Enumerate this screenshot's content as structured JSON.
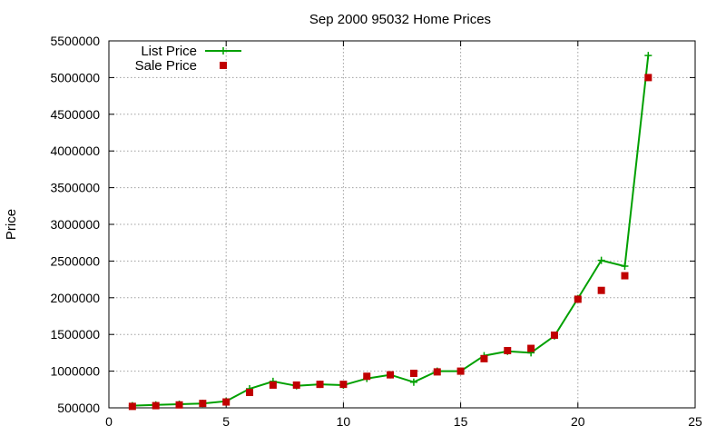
{
  "chart_data": {
    "type": "line",
    "title": "Sep 2000 95032 Home Prices",
    "xlabel": "",
    "ylabel": "Price",
    "xlim": [
      0,
      25
    ],
    "ylim": [
      500000,
      5500000
    ],
    "grid": true,
    "legend_position": "top-left",
    "x_ticks": [
      "0",
      "5",
      "10",
      "15",
      "20",
      "25"
    ],
    "y_ticks": [
      "500000",
      "1000000",
      "1500000",
      "2000000",
      "2500000",
      "3000000",
      "3500000",
      "4000000",
      "4500000",
      "5000000",
      "5500000"
    ],
    "x": [
      1,
      2,
      3,
      4,
      5,
      6,
      7,
      8,
      9,
      10,
      11,
      12,
      13,
      14,
      15,
      16,
      17,
      18,
      19,
      20,
      21,
      22,
      23
    ],
    "series": [
      {
        "name": "List Price",
        "style": "line-with-plus-markers",
        "color": "#00a000",
        "values": [
          530000,
          540000,
          550000,
          560000,
          590000,
          760000,
          860000,
          800000,
          820000,
          810000,
          900000,
          950000,
          850000,
          1000000,
          1000000,
          1210000,
          1270000,
          1250000,
          1480000,
          1990000,
          2510000,
          2430000,
          5300000
        ]
      },
      {
        "name": "Sale Price",
        "style": "square-markers",
        "color": "#c00000",
        "values": [
          520000,
          530000,
          540000,
          560000,
          580000,
          710000,
          810000,
          810000,
          820000,
          820000,
          930000,
          950000,
          970000,
          990000,
          1000000,
          1170000,
          1280000,
          1310000,
          1490000,
          1980000,
          2100000,
          2300000,
          5000000
        ]
      }
    ]
  }
}
